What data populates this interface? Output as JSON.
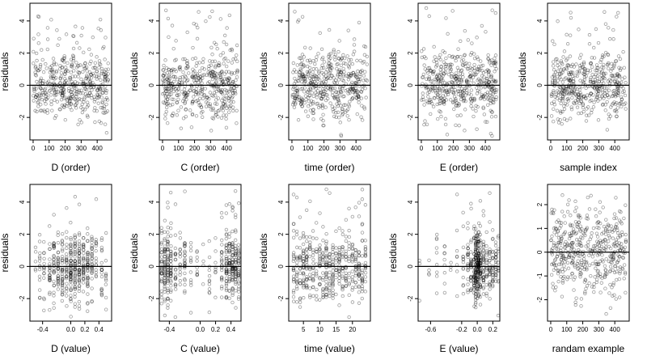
{
  "chart_data": [
    {
      "id": "p1",
      "type": "scatter",
      "xlabel": "D (order)",
      "ylabel": "residuals",
      "xlim": [
        -20,
        490
      ],
      "ylim": [
        -3.4,
        5.1
      ],
      "xticks": [
        0,
        100,
        200,
        300,
        400
      ],
      "xtick_labels": [
        "0",
        "100",
        "200",
        "300",
        "400"
      ],
      "yticks": [
        -2,
        0,
        2,
        4
      ],
      "ytick_labels": [
        "-2",
        "0",
        "2",
        "4"
      ],
      "hline": 0,
      "x_kind": "uniform",
      "x_range": [
        1,
        470
      ],
      "n": 470,
      "seed": 11,
      "sd": 1.05,
      "tail": 0.03
    },
    {
      "id": "p2",
      "type": "scatter",
      "xlabel": "C (order)",
      "ylabel": "residuals",
      "xlim": [
        -20,
        490
      ],
      "ylim": [
        -3.4,
        5.1
      ],
      "xticks": [
        0,
        100,
        200,
        300,
        400
      ],
      "xtick_labels": [
        "0",
        "100",
        "200",
        "300",
        "400"
      ],
      "yticks": [
        -2,
        0,
        2,
        4
      ],
      "ytick_labels": [
        "-2",
        "0",
        "2",
        "4"
      ],
      "hline": 0,
      "x_kind": "uniform",
      "x_range": [
        1,
        470
      ],
      "n": 470,
      "seed": 23,
      "sd": 1.05,
      "tail": 0.03
    },
    {
      "id": "p3",
      "type": "scatter",
      "xlabel": "time (order)",
      "ylabel": "residuals",
      "xlim": [
        -20,
        490
      ],
      "ylim": [
        -3.4,
        5.1
      ],
      "xticks": [
        0,
        100,
        200,
        300,
        400
      ],
      "xtick_labels": [
        "0",
        "100",
        "200",
        "300",
        "400"
      ],
      "yticks": [
        -2,
        0,
        2,
        4
      ],
      "ytick_labels": [
        "-2",
        "0",
        "2",
        "4"
      ],
      "hline": 0,
      "x_kind": "uniform",
      "x_range": [
        1,
        470
      ],
      "n": 470,
      "seed": 37,
      "sd": 1.05,
      "tail": 0.03
    },
    {
      "id": "p4",
      "type": "scatter",
      "xlabel": "E (order)",
      "ylabel": "residuals",
      "xlim": [
        -20,
        490
      ],
      "ylim": [
        -3.4,
        5.1
      ],
      "xticks": [
        0,
        100,
        200,
        300,
        400
      ],
      "xtick_labels": [
        "0",
        "100",
        "200",
        "300",
        "400"
      ],
      "yticks": [
        -2,
        0,
        2,
        4
      ],
      "ytick_labels": [
        "-2",
        "0",
        "2",
        "4"
      ],
      "hline": 0,
      "x_kind": "uniform",
      "x_range": [
        1,
        470
      ],
      "n": 470,
      "seed": 41,
      "sd": 1.05,
      "tail": 0.03
    },
    {
      "id": "p5",
      "type": "scatter",
      "xlabel": "sample index",
      "ylabel": "residuals",
      "xlim": [
        -20,
        490
      ],
      "ylim": [
        -3.4,
        5.1
      ],
      "xticks": [
        0,
        100,
        200,
        300,
        400
      ],
      "xtick_labels": [
        "0",
        "100",
        "200",
        "300",
        "400"
      ],
      "yticks": [
        -2,
        0,
        2,
        4
      ],
      "ytick_labels": [
        "-2",
        "0",
        "2",
        "4"
      ],
      "hline": 0,
      "x_kind": "uniform",
      "x_range": [
        1,
        470
      ],
      "n": 470,
      "seed": 53,
      "sd": 1.05,
      "tail": 0.03
    },
    {
      "id": "p6",
      "type": "scatter",
      "xlabel": "D (value)",
      "ylabel": "residuals",
      "xlim": [
        -0.58,
        0.58
      ],
      "ylim": [
        -3.4,
        5.1
      ],
      "xticks": [
        -0.4,
        0,
        0.2,
        0.4
      ],
      "xtick_labels": [
        "-0.4",
        "0.0",
        "0.2",
        "0.4"
      ],
      "yticks": [
        -2,
        0,
        2,
        4
      ],
      "ytick_labels": [
        "-2",
        "0",
        "2",
        "4"
      ],
      "hline": 0,
      "x_kind": "discrete",
      "x_levels": [
        -0.5,
        -0.44,
        -0.38,
        -0.3,
        -0.24,
        -0.18,
        -0.12,
        -0.06,
        0,
        0.06,
        0.12,
        0.18,
        0.24,
        0.3,
        0.36,
        0.44,
        0.5
      ],
      "x_weights": [
        1,
        1,
        2,
        2,
        3,
        3,
        4,
        4,
        5,
        5,
        5,
        4,
        4,
        3,
        2,
        2,
        1
      ],
      "n": 470,
      "seed": 61,
      "sd": 1.05,
      "tail": 0.03
    },
    {
      "id": "p7",
      "type": "scatter",
      "xlabel": "C (value)",
      "ylabel": "residuals",
      "xlim": [
        -0.53,
        0.53
      ],
      "ylim": [
        -3.4,
        5.1
      ],
      "xticks": [
        -0.4,
        0,
        0.2,
        0.4
      ],
      "xtick_labels": [
        "-0.4",
        "0.0",
        "0.2",
        "0.4"
      ],
      "yticks": [
        -2,
        0,
        2,
        4
      ],
      "ytick_labels": [
        "-2",
        "0",
        "2",
        "4"
      ],
      "hline": 0,
      "x_kind": "discrete",
      "x_levels": [
        -0.5,
        -0.46,
        -0.42,
        -0.38,
        -0.32,
        -0.26,
        -0.2,
        -0.12,
        -0.04,
        0.04,
        0.12,
        0.2,
        0.28,
        0.34,
        0.38,
        0.42,
        0.46,
        0.5
      ],
      "x_weights": [
        3,
        4,
        5,
        4,
        3,
        2,
        2,
        1,
        1,
        1,
        1,
        1,
        2,
        3,
        4,
        5,
        4,
        3
      ],
      "n": 470,
      "seed": 71,
      "sd": 1.05,
      "tail": 0.03
    },
    {
      "id": "p8",
      "type": "scatter",
      "xlabel": "time (value)",
      "ylabel": "residuals",
      "xlim": [
        0.5,
        25.5
      ],
      "ylim": [
        -3.4,
        5.1
      ],
      "xticks": [
        5,
        10,
        15,
        20
      ],
      "xtick_labels": [
        "5",
        "10",
        "15",
        "20"
      ],
      "yticks": [
        -2,
        0,
        2,
        4
      ],
      "ytick_labels": [
        "-2",
        "0",
        "2",
        "4"
      ],
      "hline": 0,
      "x_kind": "discrete",
      "x_levels": [
        2,
        3,
        4,
        5,
        6,
        7,
        8,
        9,
        10,
        11,
        12,
        13,
        14,
        15,
        16,
        17,
        18,
        19,
        20,
        21,
        22,
        23,
        24
      ],
      "x_weights": [
        1,
        1,
        1,
        1,
        1,
        1,
        1,
        1,
        1,
        1,
        2,
        1,
        1,
        1,
        1,
        1,
        1,
        1,
        1,
        1,
        1,
        1,
        1
      ],
      "n": 470,
      "seed": 83,
      "sd": 1.05,
      "tail": 0.03
    },
    {
      "id": "p9",
      "type": "scatter",
      "xlabel": "E (value)",
      "ylabel": "residuals",
      "xlim": [
        -0.76,
        0.29
      ],
      "ylim": [
        -3.4,
        5.1
      ],
      "xticks": [
        -0.6,
        -0.2,
        0,
        0.2
      ],
      "xtick_labels": [
        "-0.6",
        "-0.2",
        "0.0",
        "0.2"
      ],
      "yticks": [
        -2,
        0,
        2,
        4
      ],
      "ytick_labels": [
        "-2",
        "0",
        "2",
        "4"
      ],
      "hline": 0,
      "x_kind": "discrete",
      "x_levels": [
        -0.74,
        -0.7,
        -0.62,
        -0.52,
        -0.42,
        -0.34,
        -0.26,
        -0.18,
        -0.12,
        -0.08,
        -0.04,
        -0.02,
        0,
        0.02,
        0.04,
        0.08,
        0.12,
        0.16,
        0.2,
        0.24,
        0.27
      ],
      "x_weights": [
        1,
        1,
        1,
        1,
        1,
        1,
        2,
        3,
        4,
        6,
        8,
        9,
        10,
        9,
        8,
        6,
        5,
        4,
        4,
        3,
        2
      ],
      "n": 470,
      "seed": 97,
      "sd": 1.05,
      "tail": 0.03
    },
    {
      "id": "p10",
      "type": "scatter",
      "xlabel": "randam example",
      "ylabel": "",
      "xlim": [
        -20,
        490
      ],
      "ylim": [
        -2.9,
        2.85
      ],
      "xticks": [
        0,
        100,
        200,
        300,
        400
      ],
      "xtick_labels": [
        "0",
        "100",
        "200",
        "300",
        "400"
      ],
      "yticks": [
        -2,
        -1,
        0,
        1,
        2
      ],
      "ytick_labels": [
        "-2",
        "-1",
        "0",
        "1",
        "2"
      ],
      "hline": 0,
      "x_kind": "uniform",
      "x_range": [
        1,
        470
      ],
      "n": 470,
      "seed": 113,
      "sd": 0.95,
      "tail": 0.0
    }
  ]
}
